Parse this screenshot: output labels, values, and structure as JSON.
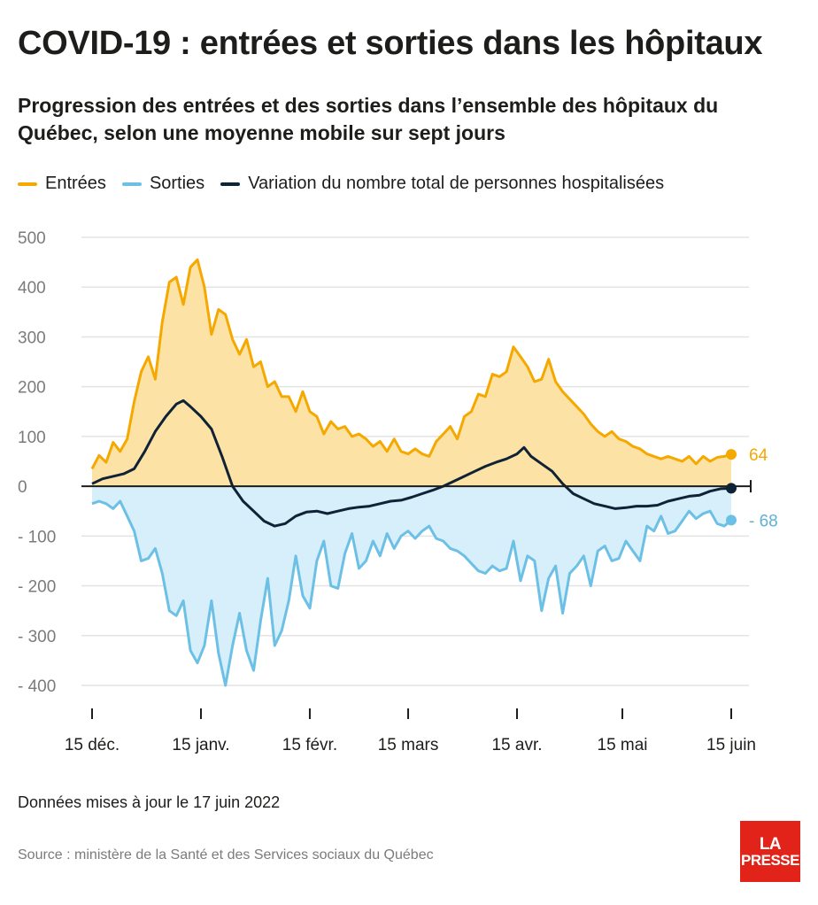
{
  "header": {
    "title": "COVID-19 : entrées et sorties dans les hôpitaux",
    "subtitle": "Progression des entrées et des sorties dans l’ensemble des hôpitaux du Québec, selon une moyenne mobile sur sept jours"
  },
  "legend": [
    {
      "label": "Entrées",
      "color": "#f5a800"
    },
    {
      "label": "Sorties",
      "color": "#6cc0e5"
    },
    {
      "label": "Variation du nombre total de personnes hospitalisées",
      "color": "#0f2236"
    }
  ],
  "colors": {
    "entrees_line": "#f5a800",
    "entrees_fill": "#fde2a6",
    "sorties_line": "#6cc0e5",
    "sorties_fill": "#d6effa",
    "variation_line": "#0f2236",
    "grid": "#e3e3e3",
    "axis_text": "#7b7b7b",
    "end_label_entrees": "#f5a800",
    "end_label_sorties": "#5fb1d6"
  },
  "chart_data": {
    "type": "area",
    "x_unit": "date",
    "x_range": [
      "2021-12-15",
      "2022-06-15"
    ],
    "ylim": [
      -400,
      500
    ],
    "y_ticks": [
      500,
      400,
      300,
      200,
      100,
      0,
      -100,
      -200,
      -300,
      -400
    ],
    "y_tick_labels": [
      "500",
      "400",
      "300",
      "200",
      "100",
      "0",
      "- 100",
      "- 200",
      "- 300",
      "- 400"
    ],
    "x_ticks": [
      {
        "date": "2021-12-15",
        "label": "15 déc."
      },
      {
        "date": "2022-01-15",
        "label": "15 janv."
      },
      {
        "date": "2022-02-15",
        "label": "15 févr."
      },
      {
        "date": "2022-03-15",
        "label": "15 mars"
      },
      {
        "date": "2022-04-15",
        "label": "15 avr."
      },
      {
        "date": "2022-05-15",
        "label": "15 mai"
      },
      {
        "date": "2022-06-15",
        "label": "15 juin"
      }
    ],
    "grid": true,
    "series": [
      {
        "name": "Entrées",
        "points": [
          [
            "2021-12-15",
            35
          ],
          [
            "2021-12-17",
            62
          ],
          [
            "2021-12-19",
            48
          ],
          [
            "2021-12-21",
            88
          ],
          [
            "2021-12-23",
            70
          ],
          [
            "2021-12-25",
            95
          ],
          [
            "2021-12-27",
            170
          ],
          [
            "2021-12-29",
            230
          ],
          [
            "2021-12-31",
            260
          ],
          [
            "2022-01-02",
            215
          ],
          [
            "2022-01-04",
            330
          ],
          [
            "2022-01-06",
            410
          ],
          [
            "2022-01-08",
            420
          ],
          [
            "2022-01-10",
            365
          ],
          [
            "2022-01-12",
            440
          ],
          [
            "2022-01-14",
            455
          ],
          [
            "2022-01-16",
            400
          ],
          [
            "2022-01-18",
            305
          ],
          [
            "2022-01-20",
            355
          ],
          [
            "2022-01-22",
            345
          ],
          [
            "2022-01-24",
            295
          ],
          [
            "2022-01-26",
            265
          ],
          [
            "2022-01-28",
            295
          ],
          [
            "2022-01-30",
            240
          ],
          [
            "2022-02-01",
            250
          ],
          [
            "2022-02-03",
            200
          ],
          [
            "2022-02-05",
            210
          ],
          [
            "2022-02-07",
            180
          ],
          [
            "2022-02-09",
            180
          ],
          [
            "2022-02-11",
            150
          ],
          [
            "2022-02-13",
            190
          ],
          [
            "2022-02-15",
            150
          ],
          [
            "2022-02-17",
            140
          ],
          [
            "2022-02-19",
            105
          ],
          [
            "2022-02-21",
            130
          ],
          [
            "2022-02-23",
            115
          ],
          [
            "2022-02-25",
            120
          ],
          [
            "2022-02-27",
            100
          ],
          [
            "2022-03-01",
            105
          ],
          [
            "2022-03-03",
            95
          ],
          [
            "2022-03-05",
            80
          ],
          [
            "2022-03-07",
            90
          ],
          [
            "2022-03-09",
            70
          ],
          [
            "2022-03-11",
            95
          ],
          [
            "2022-03-13",
            70
          ],
          [
            "2022-03-15",
            65
          ],
          [
            "2022-03-17",
            75
          ],
          [
            "2022-03-19",
            65
          ],
          [
            "2022-03-21",
            60
          ],
          [
            "2022-03-23",
            90
          ],
          [
            "2022-03-25",
            105
          ],
          [
            "2022-03-27",
            120
          ],
          [
            "2022-03-29",
            95
          ],
          [
            "2022-03-31",
            140
          ],
          [
            "2022-04-02",
            150
          ],
          [
            "2022-04-04",
            185
          ],
          [
            "2022-04-06",
            180
          ],
          [
            "2022-04-08",
            225
          ],
          [
            "2022-04-10",
            220
          ],
          [
            "2022-04-12",
            230
          ],
          [
            "2022-04-14",
            280
          ],
          [
            "2022-04-16",
            260
          ],
          [
            "2022-04-18",
            240
          ],
          [
            "2022-04-20",
            210
          ],
          [
            "2022-04-22",
            215
          ],
          [
            "2022-04-24",
            255
          ],
          [
            "2022-04-26",
            210
          ],
          [
            "2022-04-28",
            190
          ],
          [
            "2022-04-30",
            175
          ],
          [
            "2022-05-02",
            160
          ],
          [
            "2022-05-04",
            145
          ],
          [
            "2022-05-06",
            125
          ],
          [
            "2022-05-08",
            110
          ],
          [
            "2022-05-10",
            100
          ],
          [
            "2022-05-12",
            110
          ],
          [
            "2022-05-14",
            95
          ],
          [
            "2022-05-16",
            90
          ],
          [
            "2022-05-18",
            80
          ],
          [
            "2022-05-20",
            75
          ],
          [
            "2022-05-22",
            65
          ],
          [
            "2022-05-24",
            60
          ],
          [
            "2022-05-26",
            55
          ],
          [
            "2022-05-28",
            60
          ],
          [
            "2022-05-30",
            55
          ],
          [
            "2022-06-01",
            50
          ],
          [
            "2022-06-03",
            60
          ],
          [
            "2022-06-05",
            45
          ],
          [
            "2022-06-07",
            60
          ],
          [
            "2022-06-09",
            50
          ],
          [
            "2022-06-11",
            58
          ],
          [
            "2022-06-13",
            60
          ],
          [
            "2022-06-15",
            64
          ]
        ]
      },
      {
        "name": "Sorties",
        "points": [
          [
            "2021-12-15",
            -35
          ],
          [
            "2021-12-17",
            -30
          ],
          [
            "2021-12-19",
            -35
          ],
          [
            "2021-12-21",
            -45
          ],
          [
            "2021-12-23",
            -30
          ],
          [
            "2021-12-25",
            -60
          ],
          [
            "2021-12-27",
            -90
          ],
          [
            "2021-12-29",
            -150
          ],
          [
            "2021-12-31",
            -145
          ],
          [
            "2022-01-02",
            -125
          ],
          [
            "2022-01-04",
            -175
          ],
          [
            "2022-01-06",
            -250
          ],
          [
            "2022-01-08",
            -260
          ],
          [
            "2022-01-10",
            -230
          ],
          [
            "2022-01-12",
            -330
          ],
          [
            "2022-01-14",
            -355
          ],
          [
            "2022-01-16",
            -320
          ],
          [
            "2022-01-18",
            -230
          ],
          [
            "2022-01-20",
            -335
          ],
          [
            "2022-01-22",
            -400
          ],
          [
            "2022-01-24",
            -320
          ],
          [
            "2022-01-26",
            -255
          ],
          [
            "2022-01-28",
            -330
          ],
          [
            "2022-01-30",
            -370
          ],
          [
            "2022-02-01",
            -270
          ],
          [
            "2022-02-03",
            -185
          ],
          [
            "2022-02-05",
            -320
          ],
          [
            "2022-02-07",
            -290
          ],
          [
            "2022-02-09",
            -230
          ],
          [
            "2022-02-11",
            -140
          ],
          [
            "2022-02-13",
            -220
          ],
          [
            "2022-02-15",
            -245
          ],
          [
            "2022-02-17",
            -150
          ],
          [
            "2022-02-19",
            -110
          ],
          [
            "2022-02-21",
            -200
          ],
          [
            "2022-02-23",
            -205
          ],
          [
            "2022-02-25",
            -135
          ],
          [
            "2022-02-27",
            -95
          ],
          [
            "2022-03-01",
            -165
          ],
          [
            "2022-03-03",
            -150
          ],
          [
            "2022-03-05",
            -110
          ],
          [
            "2022-03-07",
            -140
          ],
          [
            "2022-03-09",
            -95
          ],
          [
            "2022-03-11",
            -125
          ],
          [
            "2022-03-13",
            -100
          ],
          [
            "2022-03-15",
            -90
          ],
          [
            "2022-03-17",
            -105
          ],
          [
            "2022-03-19",
            -90
          ],
          [
            "2022-03-21",
            -80
          ],
          [
            "2022-03-23",
            -105
          ],
          [
            "2022-03-25",
            -110
          ],
          [
            "2022-03-27",
            -125
          ],
          [
            "2022-03-29",
            -130
          ],
          [
            "2022-03-31",
            -140
          ],
          [
            "2022-04-02",
            -155
          ],
          [
            "2022-04-04",
            -170
          ],
          [
            "2022-04-06",
            -175
          ],
          [
            "2022-04-08",
            -160
          ],
          [
            "2022-04-10",
            -170
          ],
          [
            "2022-04-12",
            -165
          ],
          [
            "2022-04-14",
            -110
          ],
          [
            "2022-04-16",
            -190
          ],
          [
            "2022-04-18",
            -140
          ],
          [
            "2022-04-20",
            -150
          ],
          [
            "2022-04-22",
            -250
          ],
          [
            "2022-04-24",
            -185
          ],
          [
            "2022-04-26",
            -160
          ],
          [
            "2022-04-28",
            -255
          ],
          [
            "2022-04-30",
            -175
          ],
          [
            "2022-05-02",
            -160
          ],
          [
            "2022-05-04",
            -140
          ],
          [
            "2022-05-06",
            -200
          ],
          [
            "2022-05-08",
            -130
          ],
          [
            "2022-05-10",
            -120
          ],
          [
            "2022-05-12",
            -150
          ],
          [
            "2022-05-14",
            -145
          ],
          [
            "2022-05-16",
            -110
          ],
          [
            "2022-05-18",
            -130
          ],
          [
            "2022-05-20",
            -150
          ],
          [
            "2022-05-22",
            -80
          ],
          [
            "2022-05-24",
            -90
          ],
          [
            "2022-05-26",
            -60
          ],
          [
            "2022-05-28",
            -95
          ],
          [
            "2022-05-30",
            -90
          ],
          [
            "2022-06-01",
            -70
          ],
          [
            "2022-06-03",
            -50
          ],
          [
            "2022-06-05",
            -65
          ],
          [
            "2022-06-07",
            -55
          ],
          [
            "2022-06-09",
            -50
          ],
          [
            "2022-06-11",
            -75
          ],
          [
            "2022-06-13",
            -80
          ],
          [
            "2022-06-15",
            -68
          ]
        ]
      },
      {
        "name": "Variation du nombre total de personnes hospitalisées",
        "points": [
          [
            "2021-12-15",
            5
          ],
          [
            "2021-12-18",
            15
          ],
          [
            "2021-12-21",
            20
          ],
          [
            "2021-12-24",
            25
          ],
          [
            "2021-12-27",
            35
          ],
          [
            "2021-12-30",
            70
          ],
          [
            "2022-01-02",
            110
          ],
          [
            "2022-01-05",
            140
          ],
          [
            "2022-01-08",
            165
          ],
          [
            "2022-01-10",
            172
          ],
          [
            "2022-01-12",
            160
          ],
          [
            "2022-01-15",
            140
          ],
          [
            "2022-01-18",
            115
          ],
          [
            "2022-01-21",
            60
          ],
          [
            "2022-01-24",
            0
          ],
          [
            "2022-01-27",
            -30
          ],
          [
            "2022-01-30",
            -50
          ],
          [
            "2022-02-02",
            -70
          ],
          [
            "2022-02-05",
            -80
          ],
          [
            "2022-02-08",
            -75
          ],
          [
            "2022-02-11",
            -60
          ],
          [
            "2022-02-14",
            -52
          ],
          [
            "2022-02-17",
            -50
          ],
          [
            "2022-02-20",
            -55
          ],
          [
            "2022-02-23",
            -50
          ],
          [
            "2022-02-26",
            -45
          ],
          [
            "2022-03-01",
            -42
          ],
          [
            "2022-03-04",
            -40
          ],
          [
            "2022-03-07",
            -35
          ],
          [
            "2022-03-10",
            -30
          ],
          [
            "2022-03-13",
            -28
          ],
          [
            "2022-03-16",
            -22
          ],
          [
            "2022-03-19",
            -15
          ],
          [
            "2022-03-22",
            -8
          ],
          [
            "2022-03-25",
            0
          ],
          [
            "2022-03-28",
            10
          ],
          [
            "2022-03-31",
            20
          ],
          [
            "2022-04-03",
            30
          ],
          [
            "2022-04-06",
            40
          ],
          [
            "2022-04-09",
            48
          ],
          [
            "2022-04-12",
            55
          ],
          [
            "2022-04-15",
            65
          ],
          [
            "2022-04-17",
            78
          ],
          [
            "2022-04-19",
            60
          ],
          [
            "2022-04-22",
            45
          ],
          [
            "2022-04-25",
            30
          ],
          [
            "2022-04-28",
            5
          ],
          [
            "2022-05-01",
            -15
          ],
          [
            "2022-05-04",
            -25
          ],
          [
            "2022-05-07",
            -35
          ],
          [
            "2022-05-10",
            -40
          ],
          [
            "2022-05-13",
            -45
          ],
          [
            "2022-05-16",
            -43
          ],
          [
            "2022-05-19",
            -40
          ],
          [
            "2022-05-22",
            -40
          ],
          [
            "2022-05-25",
            -38
          ],
          [
            "2022-05-28",
            -30
          ],
          [
            "2022-05-31",
            -25
          ],
          [
            "2022-06-03",
            -20
          ],
          [
            "2022-06-06",
            -18
          ],
          [
            "2022-06-09",
            -10
          ],
          [
            "2022-06-12",
            -5
          ],
          [
            "2022-06-15",
            -4
          ]
        ]
      }
    ],
    "end_labels": [
      {
        "series": "Entrées",
        "value": 64,
        "label": "64"
      },
      {
        "series": "Sorties",
        "value": -68,
        "label": "- 68"
      }
    ]
  },
  "footer": {
    "update": "Données mises à jour le 17 juin 2022",
    "source": "Source : ministère de la Santé et des Services sociaux du Québec",
    "logo_line1": "LA",
    "logo_line2": "PRESSE"
  }
}
